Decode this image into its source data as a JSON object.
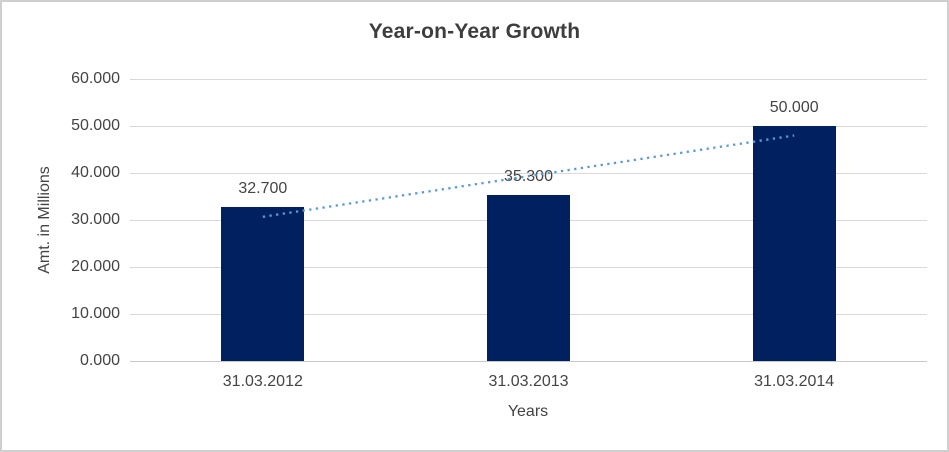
{
  "chart_data": {
    "type": "bar",
    "title": "Year-on-Year Growth",
    "xlabel": "Years",
    "ylabel": "Amt. in Millions",
    "categories": [
      "31.03.2012",
      "31.03.2013",
      "31.03.2014"
    ],
    "values": [
      32.7,
      35.3,
      50.0
    ],
    "value_labels": [
      "32.700",
      "35.300",
      "50.000"
    ],
    "ylim": [
      0,
      60
    ],
    "y_tick_values": [
      0,
      10,
      20,
      30,
      40,
      50,
      60
    ],
    "y_tick_labels": [
      "0.000",
      "10.000",
      "20.000",
      "30.000",
      "40.000",
      "50.000",
      "60.000"
    ],
    "grid": true,
    "legend": "none",
    "bar_color": "#002060",
    "gridline_color": "#d9d9d9",
    "trendline": {
      "type": "linear",
      "style": "dotted",
      "color": "#5b9bd5",
      "start_value": 30.68,
      "end_value": 47.98
    }
  }
}
